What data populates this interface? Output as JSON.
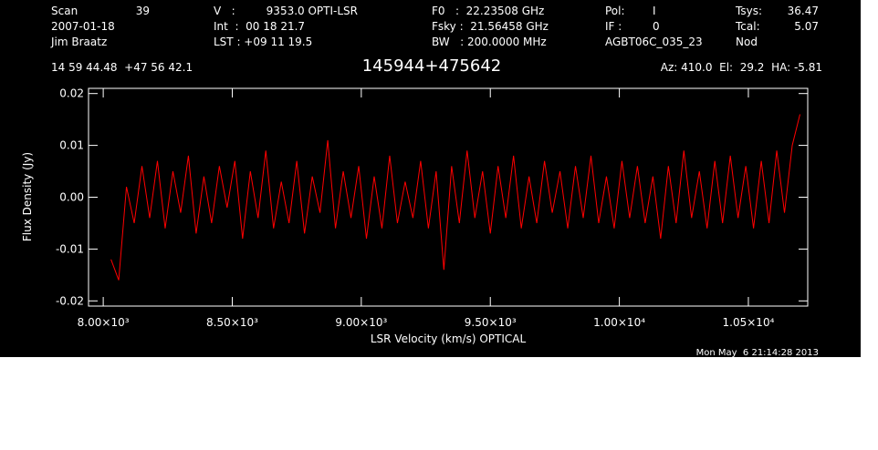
{
  "header": {
    "scan_label": "Scan",
    "scan": "39",
    "date": "2007-01-18",
    "observer": "Jim Braatz",
    "v_label": "V   :",
    "v": "9353.0 OPTI-LSR",
    "int": "Int  :  00 18 21.7",
    "lst": "LST : +09 11 19.5",
    "f0": "F0   :  22.23508 GHz",
    "fsky": "Fsky :  21.56458 GHz",
    "bw": "BW   : 200.0000 MHz",
    "pol_label": "Pol:",
    "pol": "I",
    "if_label": "IF :",
    "if": "0",
    "project": "AGBT06C_035_23",
    "tsys_label": "Tsys:",
    "tsys": "36.47",
    "tcal_label": "Tcal:",
    "tcal": "5.07",
    "proc": "Nod",
    "coords": "14 59 44.48  +47 56 42.1",
    "source": "145944+475642",
    "azel": "Az: 410.0  El:  29.2  HA: -5.81",
    "timestamp": "Mon May  6 21:14:28 2013"
  },
  "chart_data": {
    "type": "line",
    "xlabel": "LSR Velocity (km/s) OPTICAL",
    "ylabel": "Flux Density (Jy)",
    "color": "#ff0000",
    "xlim": [
      7943,
      10730
    ],
    "ylim": [
      -0.021,
      0.021
    ],
    "xticks": [
      {
        "value": 8000,
        "label": "8.00×10³"
      },
      {
        "value": 8500,
        "label": "8.50×10³"
      },
      {
        "value": 9000,
        "label": "9.00×10³"
      },
      {
        "value": 9500,
        "label": "9.50×10³"
      },
      {
        "value": 10000,
        "label": "1.00×10⁴"
      },
      {
        "value": 10500,
        "label": "1.05×10⁴"
      }
    ],
    "yticks": [
      -0.02,
      -0.01,
      {
        "value": 0,
        "label": "0.00"
      },
      0.01,
      0.02
    ],
    "x": [
      8030,
      8060,
      8090,
      8120,
      8150,
      8180,
      8210,
      8240,
      8270,
      8300,
      8330,
      8360,
      8390,
      8420,
      8450,
      8480,
      8510,
      8540,
      8570,
      8600,
      8630,
      8660,
      8690,
      8720,
      8750,
      8780,
      8810,
      8840,
      8870,
      8900,
      8930,
      8960,
      8990,
      9020,
      9050,
      9080,
      9110,
      9140,
      9170,
      9200,
      9230,
      9260,
      9290,
      9320,
      9350,
      9380,
      9410,
      9440,
      9470,
      9500,
      9530,
      9560,
      9590,
      9620,
      9650,
      9680,
      9710,
      9740,
      9770,
      9800,
      9830,
      9860,
      9890,
      9920,
      9950,
      9980,
      10010,
      10040,
      10070,
      10100,
      10130,
      10160,
      10190,
      10220,
      10250,
      10280,
      10310,
      10340,
      10370,
      10400,
      10430,
      10460,
      10490,
      10520,
      10550,
      10580,
      10610,
      10640,
      10670,
      10700
    ],
    "values": [
      -0.012,
      -0.016,
      0.002,
      -0.005,
      0.006,
      -0.004,
      0.007,
      -0.006,
      0.005,
      -0.003,
      0.008,
      -0.007,
      0.004,
      -0.005,
      0.006,
      -0.002,
      0.007,
      -0.008,
      0.005,
      -0.004,
      0.009,
      -0.006,
      0.003,
      -0.005,
      0.007,
      -0.007,
      0.004,
      -0.003,
      0.011,
      -0.006,
      0.005,
      -0.004,
      0.006,
      -0.008,
      0.004,
      -0.006,
      0.008,
      -0.005,
      0.003,
      -0.004,
      0.007,
      -0.006,
      0.005,
      -0.014,
      0.006,
      -0.005,
      0.009,
      -0.004,
      0.005,
      -0.007,
      0.006,
      -0.004,
      0.008,
      -0.006,
      0.004,
      -0.005,
      0.007,
      -0.003,
      0.005,
      -0.006,
      0.006,
      -0.004,
      0.008,
      -0.005,
      0.004,
      -0.006,
      0.007,
      -0.004,
      0.006,
      -0.005,
      0.004,
      -0.008,
      0.006,
      -0.005,
      0.009,
      -0.004,
      0.005,
      -0.006,
      0.007,
      -0.005,
      0.008,
      -0.004,
      0.006,
      -0.006,
      0.007,
      -0.005,
      0.009,
      -0.003,
      0.01,
      0.016
    ]
  }
}
